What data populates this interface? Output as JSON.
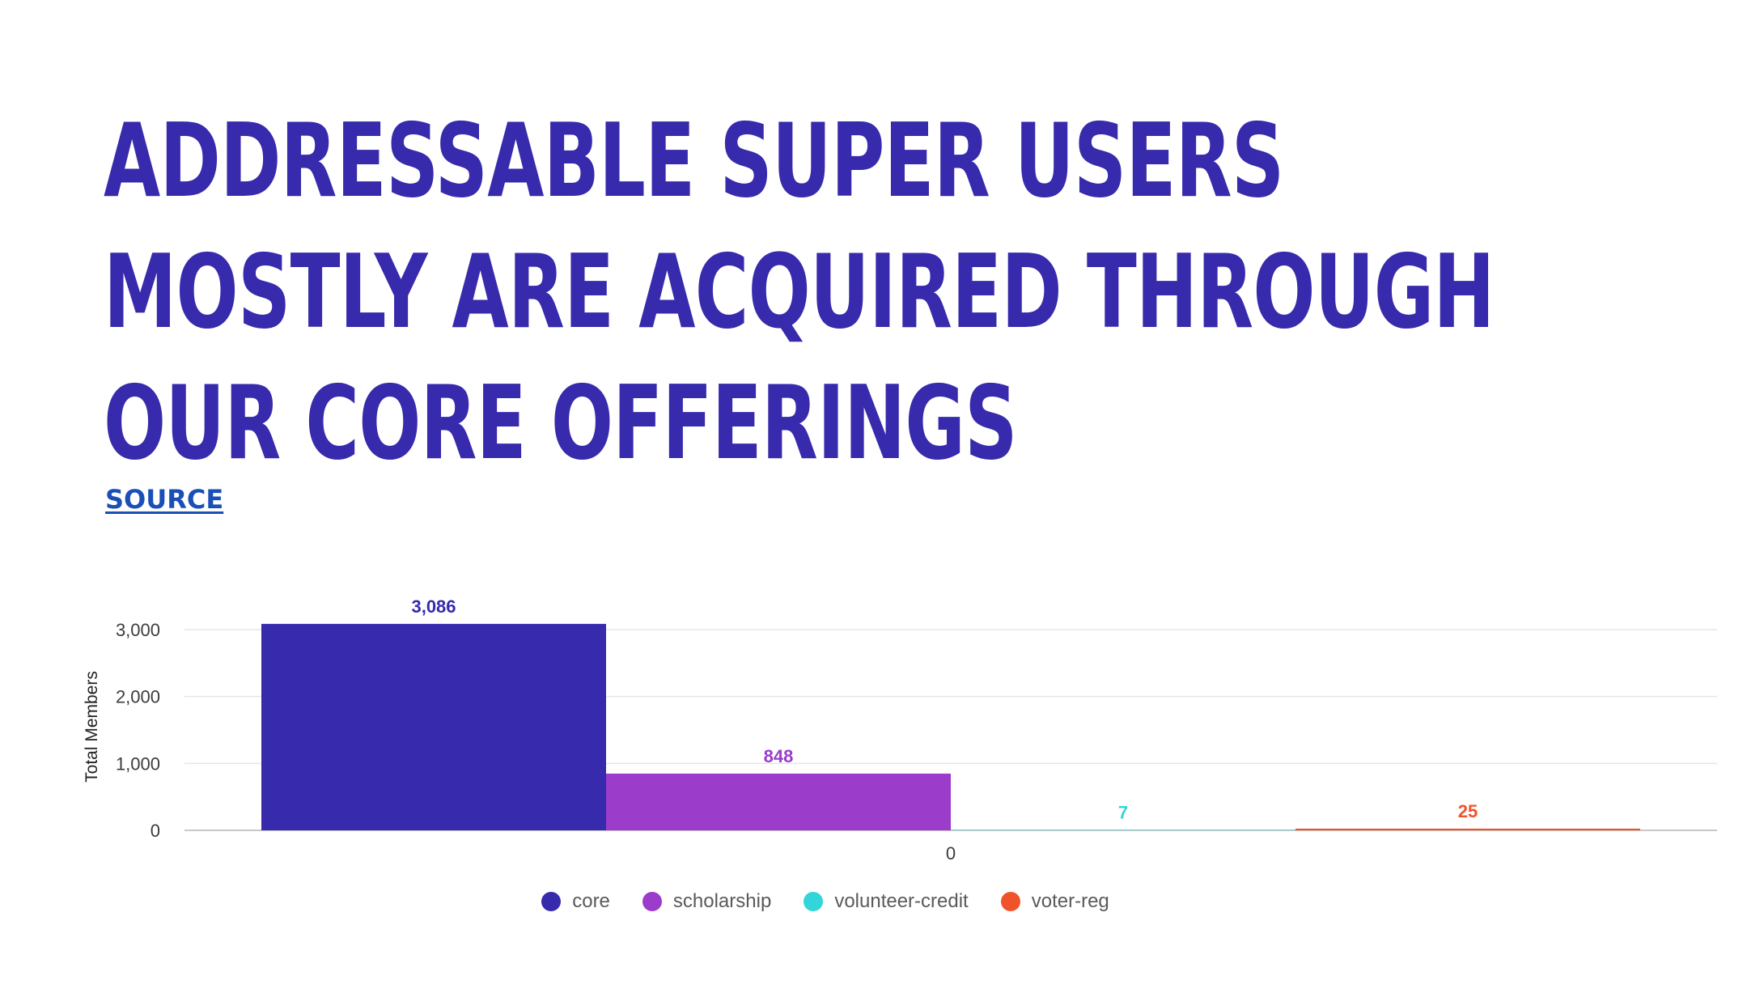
{
  "slide": {
    "title_lines": [
      "ADDRESSABLE SUPER USERS",
      "MOSTLY ARE ACQUIRED THROUGH",
      "OUR CORE OFFERINGS"
    ],
    "source_label": "SOURCE"
  },
  "chart_data": {
    "type": "bar",
    "title": "",
    "xlabel": "",
    "ylabel": "Total Members",
    "categories": [
      "0"
    ],
    "ylim": [
      0,
      3000
    ],
    "yticks": [
      0,
      1000,
      2000,
      3000
    ],
    "ytick_labels": [
      "0",
      "1,000",
      "2,000",
      "3,000"
    ],
    "grid": true,
    "legend_position": "bottom",
    "series": [
      {
        "name": "core",
        "values": [
          3086
        ],
        "label": "3,086",
        "color": "#372aac"
      },
      {
        "name": "scholarship",
        "values": [
          848
        ],
        "label": "848",
        "color": "#9b3ccb"
      },
      {
        "name": "volunteer-credit",
        "values": [
          7
        ],
        "label": "7",
        "color": "#33d6d8"
      },
      {
        "name": "voter-reg",
        "values": [
          25
        ],
        "label": "25",
        "color": "#f0532a"
      }
    ]
  }
}
